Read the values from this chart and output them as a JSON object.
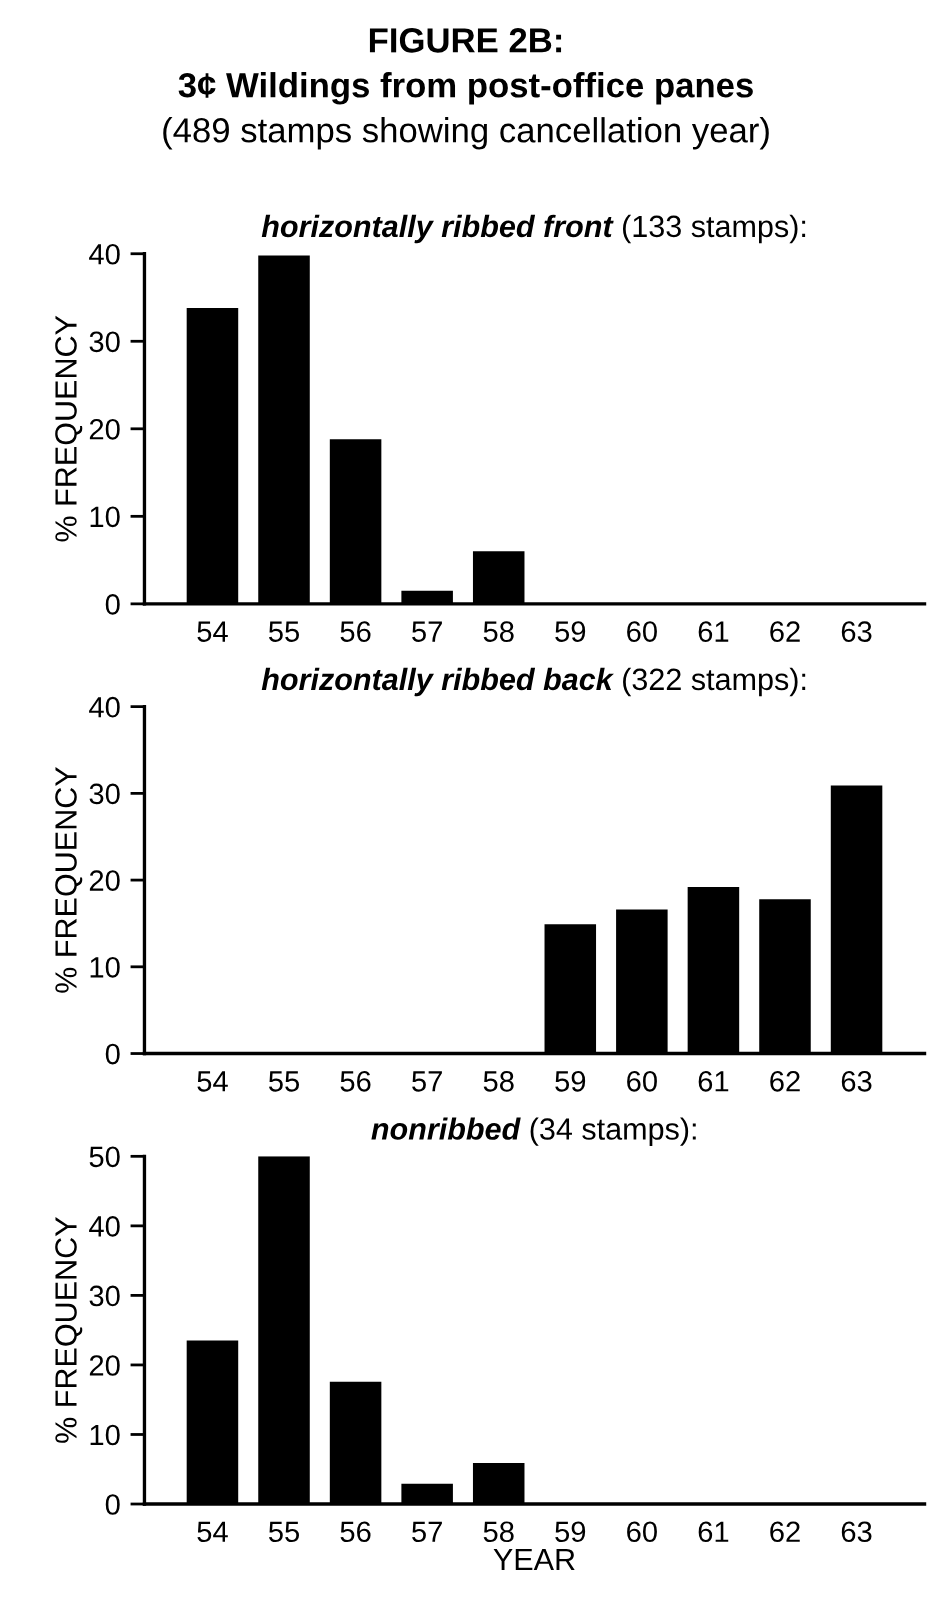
{
  "chart_data": [
    {
      "type": "bar",
      "annotations": [
        "FIGURE 2B:",
        "3¢ Wildings from post-office panes",
        "(489 stamps showing cancellation year)"
      ],
      "title": "horizontally ribbed front",
      "subtitle": "(133 stamps):",
      "ylabel": "% FREQUENCY",
      "categories": [
        "54",
        "55",
        "56",
        "57",
        "58",
        "59",
        "60",
        "61",
        "62",
        "63"
      ],
      "values": [
        33.8,
        39.8,
        18.8,
        1.5,
        6.0,
        0,
        0,
        0,
        0,
        0
      ],
      "color": "#000000",
      "ylim": [
        0,
        40
      ],
      "yticks": [
        0,
        10,
        20,
        30,
        40
      ],
      "grid": false,
      "legend": false
    },
    {
      "type": "bar",
      "title": "horizontally ribbed back",
      "subtitle": "(322 stamps):",
      "ylabel": "% FREQUENCY",
      "categories": [
        "54",
        "55",
        "56",
        "57",
        "58",
        "59",
        "60",
        "61",
        "62",
        "63"
      ],
      "values": [
        0,
        0,
        0,
        0,
        0,
        14.9,
        16.6,
        19.2,
        17.8,
        30.9
      ],
      "color": "#000000",
      "ylim": [
        0,
        40
      ],
      "yticks": [
        0,
        10,
        20,
        30,
        40
      ],
      "grid": false,
      "legend": false
    },
    {
      "type": "bar",
      "title": "nonribbed",
      "subtitle": "(34 stamps):",
      "ylabel": "% FREQUENCY",
      "xlabel": "YEAR",
      "categories": [
        "54",
        "55",
        "56",
        "57",
        "58",
        "59",
        "60",
        "61",
        "62",
        "63"
      ],
      "values": [
        23.5,
        50.0,
        17.6,
        2.9,
        5.9,
        0,
        0,
        0,
        0,
        0
      ],
      "color": "#000000",
      "ylim": [
        0,
        50
      ],
      "yticks": [
        0,
        10,
        20,
        30,
        40,
        50
      ],
      "grid": false,
      "legend": false
    }
  ]
}
